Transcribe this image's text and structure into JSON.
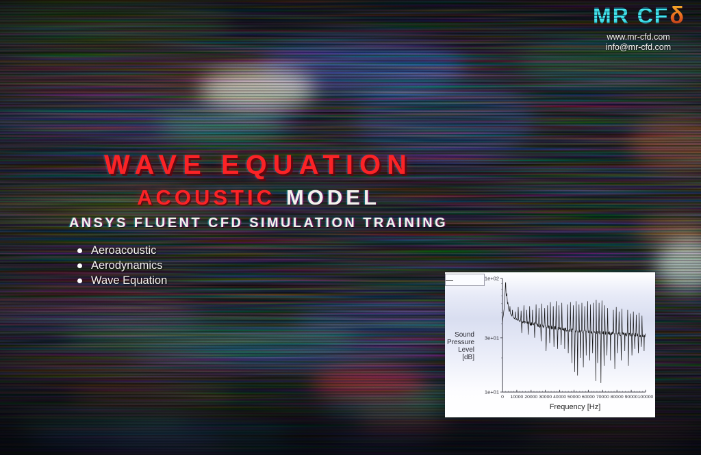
{
  "logo": {
    "brand": "MR CF",
    "delta": "δ",
    "website": "www.mr-cfd.com",
    "email": "info@mr-cfd.com"
  },
  "hero": {
    "title": "WAVE EQUATION",
    "subtitle_accent": "ACOUSTIC",
    "subtitle_rest": "MODEL",
    "tagline": "ANSYS FLUENT CFD SIMULATION TRAINING",
    "bullets": [
      "Aeroacoustic",
      "Aerodynamics",
      "Wave Equation"
    ]
  },
  "colors": {
    "title_red": "#fb2326",
    "text_white": "#f3f1ec",
    "logo_cyan": "#3cd9e2",
    "logo_orange": "#e8641e"
  },
  "chart_data": {
    "type": "line",
    "title": "",
    "xlabel": "Frequency [Hz]",
    "ylabel_lines": [
      "Sound",
      "Pressure",
      "Level",
      "[dB]"
    ],
    "y_scale": "log",
    "xlim": [
      0,
      100000
    ],
    "ylim": [
      10,
      100
    ],
    "grid": false,
    "legend": {
      "position": "top-left",
      "entries": [
        {
          "symbol": "line",
          "label": ""
        }
      ]
    },
    "x_ticks": [
      0,
      10000,
      20000,
      30000,
      40000,
      50000,
      60000,
      70000,
      80000,
      90000,
      100000
    ],
    "x_tick_labels": [
      "0",
      "10000",
      "20000",
      "30000",
      "40000",
      "50000",
      "60000",
      "70000",
      "80000",
      "90000",
      "100000"
    ],
    "x_minor_step": 2000,
    "y_ticks": [
      {
        "value": 100,
        "label": "1e+02"
      },
      {
        "value": 30,
        "label": "3e+01"
      },
      {
        "value": 10,
        "label": "1e+01"
      }
    ],
    "y_minor_ticks": [
      20,
      40,
      50,
      60,
      70,
      80,
      90
    ],
    "series": [
      {
        "name": "",
        "color": "#141414",
        "noise": 0.016,
        "trend": [
          [
            0,
            41
          ],
          [
            1200,
            55
          ],
          [
            1800,
            75
          ],
          [
            2200,
            97
          ],
          [
            2600,
            68
          ],
          [
            3000,
            74
          ],
          [
            3600,
            58
          ],
          [
            4500,
            52
          ],
          [
            6000,
            48
          ],
          [
            8000,
            45
          ],
          [
            10000,
            43.5
          ],
          [
            14000,
            41.5
          ],
          [
            20000,
            40
          ],
          [
            26000,
            38.5
          ],
          [
            32000,
            37.5
          ],
          [
            40000,
            36
          ],
          [
            48000,
            35
          ],
          [
            56000,
            34
          ],
          [
            64000,
            33.5
          ],
          [
            72000,
            33
          ],
          [
            80000,
            32.5
          ],
          [
            90000,
            32
          ],
          [
            100000,
            31.5
          ]
        ],
        "up_spikes": [
          [
            3800,
            62
          ],
          [
            5200,
            57
          ],
          [
            7000,
            53
          ],
          [
            9000,
            51
          ],
          [
            11000,
            56
          ],
          [
            13000,
            52
          ],
          [
            15000,
            58
          ],
          [
            17000,
            53
          ],
          [
            19000,
            57
          ],
          [
            21000,
            53
          ],
          [
            23500,
            59
          ],
          [
            25500,
            55
          ],
          [
            27500,
            60
          ],
          [
            29500,
            55
          ],
          [
            31500,
            58
          ],
          [
            33500,
            62
          ],
          [
            35500,
            57
          ],
          [
            37500,
            63
          ],
          [
            39500,
            58
          ],
          [
            41500,
            61
          ],
          [
            43500,
            64
          ],
          [
            45500,
            59
          ],
          [
            47500,
            62
          ],
          [
            49500,
            58
          ],
          [
            51500,
            63
          ],
          [
            53500,
            59
          ],
          [
            55500,
            61
          ],
          [
            57500,
            57
          ],
          [
            59500,
            63
          ],
          [
            61500,
            59
          ],
          [
            63500,
            61
          ],
          [
            65500,
            65
          ],
          [
            67500,
            61
          ],
          [
            69500,
            64
          ],
          [
            71500,
            58
          ],
          [
            73500,
            55
          ],
          [
            75500,
            59
          ],
          [
            77500,
            53
          ],
          [
            79500,
            56
          ],
          [
            81500,
            51
          ],
          [
            83500,
            54
          ],
          [
            85500,
            50
          ],
          [
            87500,
            53
          ],
          [
            89500,
            49
          ],
          [
            91500,
            51
          ],
          [
            93500,
            48
          ],
          [
            95500,
            50
          ],
          [
            97500,
            47
          ],
          [
            99000,
            49
          ]
        ],
        "down_spikes": [
          [
            13500,
            33
          ],
          [
            18000,
            32
          ],
          [
            22500,
            30
          ],
          [
            27000,
            28
          ],
          [
            30500,
            23
          ],
          [
            33000,
            27
          ],
          [
            36000,
            25
          ],
          [
            38500,
            24
          ],
          [
            41000,
            26
          ],
          [
            43500,
            24
          ],
          [
            46000,
            22
          ],
          [
            48500,
            18
          ],
          [
            50500,
            15
          ],
          [
            52500,
            14
          ],
          [
            54500,
            20
          ],
          [
            56500,
            16.5
          ],
          [
            58500,
            21
          ],
          [
            61000,
            19
          ],
          [
            63000,
            22
          ],
          [
            65200,
            12.5
          ],
          [
            66500,
            18
          ],
          [
            68800,
            12
          ],
          [
            71000,
            17
          ],
          [
            73000,
            21
          ],
          [
            75500,
            19
          ],
          [
            78500,
            16
          ],
          [
            80500,
            22
          ],
          [
            83000,
            19
          ],
          [
            85500,
            23
          ],
          [
            88000,
            17
          ],
          [
            90500,
            21
          ],
          [
            92500,
            24
          ],
          [
            95000,
            22
          ],
          [
            97000,
            25
          ],
          [
            99000,
            23
          ]
        ]
      }
    ]
  }
}
